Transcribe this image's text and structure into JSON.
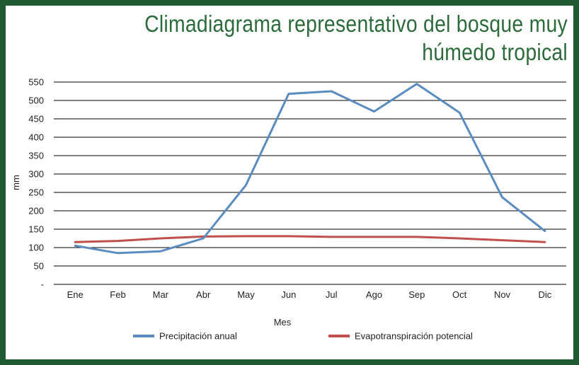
{
  "chart_data": {
    "type": "line",
    "title_lines": [
      "Climadiagrama representativo del bosque muy",
      "húmedo tropical"
    ],
    "xlabel": "Mes",
    "ylabel": "mm",
    "categories": [
      "Ene",
      "Feb",
      "Mar",
      "Abr",
      "May",
      "Jun",
      "Jul",
      "Ago",
      "Sep",
      "Oct",
      "Nov",
      "Dic"
    ],
    "y_ticks": [
      "-",
      "50",
      "100",
      "150",
      "200",
      "250",
      "300",
      "350",
      "400",
      "450",
      "500",
      "550"
    ],
    "ylim": [
      0,
      550
    ],
    "grid": true,
    "legend_position": "bottom",
    "series": [
      {
        "name": "Precipitación anual",
        "color": "#5a8cc0",
        "values": [
          105,
          85,
          90,
          125,
          270,
          518,
          525,
          470,
          545,
          467,
          237,
          145
        ]
      },
      {
        "name": "Evapotranspiración potencial",
        "color": "#c0504d",
        "values": [
          115,
          118,
          125,
          130,
          131,
          131,
          129,
          129,
          129,
          125,
          120,
          115
        ]
      }
    ]
  }
}
